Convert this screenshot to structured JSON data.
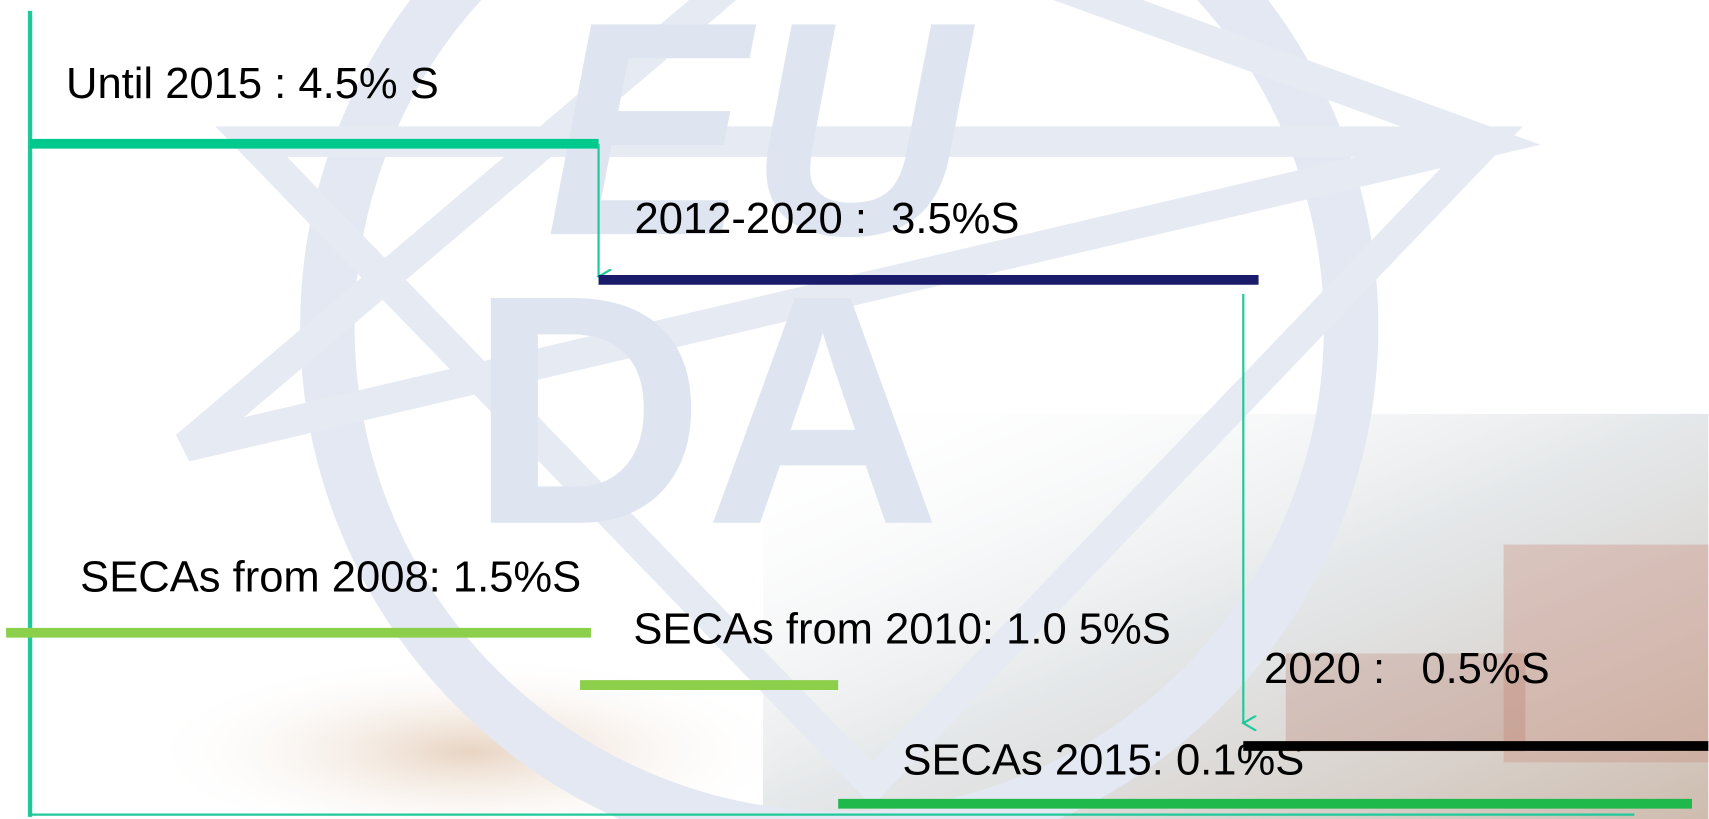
{
  "labels": [
    "Until 2015 : 4.5% S",
    "2012-2020 :  3.5%S",
    "SECAs from 2008: 1.5%S",
    "SECAs from 2010: 1.0 5%S",
    "2020 :   0.5%S",
    "SECAs 2015: 0.1%S"
  ]
}
